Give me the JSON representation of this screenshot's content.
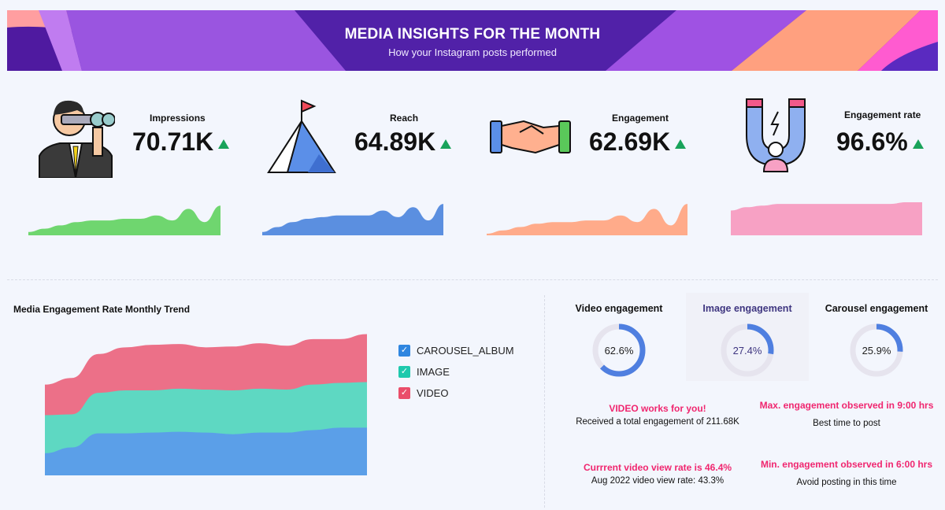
{
  "header": {
    "title": "MEDIA INSIGHTS FOR THE MONTH",
    "subtitle": "How your Instagram posts performed"
  },
  "kpis": [
    {
      "label": "Impressions",
      "value": "70.71K",
      "trend": "up",
      "icon": "person-binoculars-icon",
      "color": "#6fd66f",
      "spark": [
        2,
        4,
        6,
        8,
        9,
        9,
        10,
        10,
        12,
        9,
        16,
        8,
        18
      ]
    },
    {
      "label": "Reach",
      "value": "64.89K",
      "trend": "up",
      "icon": "mountain-flag-icon",
      "color": "#5b8fe0",
      "spark": [
        2,
        5,
        8,
        10,
        11,
        12,
        12,
        12,
        15,
        11,
        17,
        9,
        19
      ]
    },
    {
      "label": "Engagement",
      "value": "62.69K",
      "trend": "up",
      "icon": "handshake-icon",
      "color": "#ffab8a",
      "spark": [
        1,
        3,
        5,
        7,
        8,
        8,
        9,
        9,
        12,
        8,
        16,
        6,
        19
      ]
    },
    {
      "label": "Engagement rate",
      "value": "96.6%",
      "trend": "up",
      "icon": "magnet-user-icon",
      "color": "#f7a1c4",
      "spark": [
        15,
        17,
        18,
        19,
        19,
        19,
        19,
        19,
        19,
        19,
        19,
        20,
        20
      ]
    }
  ],
  "trend_up_color": "#19a35a",
  "chart_data": {
    "type": "area",
    "stacked": true,
    "title": "Media Engagement Rate Monthly Trend",
    "grid": false,
    "legend_placement": "right",
    "series": [
      {
        "name": "CAROUSEL_ALBUM",
        "color": "#5b9fe8",
        "values": [
          26,
          33,
          50,
          50,
          51,
          52,
          51,
          49,
          51,
          51,
          54,
          57,
          57
        ]
      },
      {
        "name": "IMAGE",
        "color": "#5ed8c2",
        "values": [
          46,
          40,
          49,
          52,
          51,
          52,
          52,
          53,
          53,
          52,
          55,
          54,
          55
        ]
      },
      {
        "name": "VIDEO",
        "color": "#ec7088",
        "values": [
          37,
          44,
          47,
          52,
          55,
          54,
          51,
          53,
          55,
          53,
          55,
          53,
          58
        ]
      }
    ]
  },
  "rings": [
    {
      "title": "Video engagement",
      "value": "62.6%",
      "percent": 62.6
    },
    {
      "title": "Image engagement",
      "value": "27.4%",
      "percent": 27.4
    },
    {
      "title": "Carousel engagement",
      "value": "25.9%",
      "percent": 25.9
    }
  ],
  "notes": [
    {
      "highlight": "VIDEO works for you!",
      "text": "Received a total engagement of 211.68K"
    },
    {
      "highlight": "Max. engagement observed in 9:00 hrs",
      "text": "Best time to post"
    },
    {
      "highlight": "Currrent video view rate is 46.4%",
      "text": "Aug 2022 video view rate: 43.3%"
    },
    {
      "highlight": "Min. engagement observed in 6:00 hrs",
      "text": "Avoid posting in this time"
    }
  ]
}
